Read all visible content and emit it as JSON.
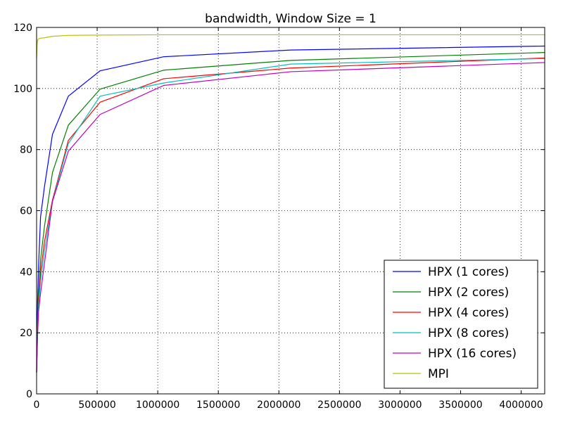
{
  "chart_data": {
    "type": "line",
    "title": "bandwidth, Window Size = 1",
    "xlabel": "",
    "ylabel": "",
    "xlim": [
      0,
      4194304
    ],
    "ylim": [
      0,
      120
    ],
    "grid": true,
    "legend_position": "lower-right",
    "x_ticks": [
      0,
      500000,
      1000000,
      1500000,
      2000000,
      2500000,
      3000000,
      3500000,
      4000000
    ],
    "x_tick_labels": [
      "0",
      "500000",
      "1000000",
      "1500000",
      "2000000",
      "2500000",
      "3000000",
      "3500000",
      "4000000"
    ],
    "y_ticks": [
      0,
      20,
      40,
      60,
      80,
      100,
      120
    ],
    "y_tick_labels": [
      "0",
      "20",
      "40",
      "60",
      "80",
      "100",
      "120"
    ],
    "series": [
      {
        "name": "HPX (1 cores)",
        "color": "#0000ff",
        "points": [
          [
            1,
            8
          ],
          [
            4096,
            20
          ],
          [
            8192,
            30
          ],
          [
            16384,
            42
          ],
          [
            32768,
            58
          ],
          [
            65536,
            68
          ],
          [
            131072,
            85
          ],
          [
            262144,
            97.5
          ],
          [
            524288,
            105.8
          ],
          [
            1048576,
            110.4
          ],
          [
            2097152,
            112.6
          ],
          [
            4194304,
            113.9
          ]
        ]
      },
      {
        "name": "HPX (2 cores)",
        "color": "#008000",
        "points": [
          [
            1,
            7
          ],
          [
            4096,
            16
          ],
          [
            8192,
            24
          ],
          [
            16384,
            32
          ],
          [
            32768,
            44
          ],
          [
            65536,
            55
          ],
          [
            131072,
            72.5
          ],
          [
            262144,
            88
          ],
          [
            524288,
            99.8
          ],
          [
            1048576,
            106
          ],
          [
            2097152,
            109.2
          ],
          [
            4194304,
            111.8
          ]
        ]
      },
      {
        "name": "HPX (4 cores)",
        "color": "#ff0000",
        "points": [
          [
            1,
            7
          ],
          [
            4096,
            14
          ],
          [
            8192,
            22
          ],
          [
            16384,
            30
          ],
          [
            32768,
            40
          ],
          [
            65536,
            50
          ],
          [
            131072,
            63.5
          ],
          [
            262144,
            83
          ],
          [
            524288,
            95.5
          ],
          [
            1048576,
            103.2
          ],
          [
            2097152,
            106.7
          ],
          [
            4194304,
            110
          ]
        ]
      },
      {
        "name": "HPX (8 cores)",
        "color": "#00bfbf",
        "points": [
          [
            1,
            7
          ],
          [
            4096,
            14
          ],
          [
            8192,
            21
          ],
          [
            16384,
            29
          ],
          [
            32768,
            37
          ],
          [
            65536,
            47
          ],
          [
            131072,
            63
          ],
          [
            262144,
            82
          ],
          [
            524288,
            97.5
          ],
          [
            1048576,
            101.8
          ],
          [
            2097152,
            108
          ],
          [
            4194304,
            109.8
          ]
        ]
      },
      {
        "name": "HPX (16 cores)",
        "color": "#bf00bf",
        "points": [
          [
            1,
            7
          ],
          [
            4096,
            13
          ],
          [
            8192,
            19
          ],
          [
            16384,
            27
          ],
          [
            32768,
            33
          ],
          [
            65536,
            43
          ],
          [
            131072,
            63
          ],
          [
            262144,
            79.5
          ],
          [
            524288,
            91.5
          ],
          [
            1048576,
            101
          ],
          [
            2097152,
            105.5
          ],
          [
            4194304,
            108.5
          ]
        ]
      },
      {
        "name": "MPI",
        "color": "#bfbf00",
        "points": [
          [
            1,
            110
          ],
          [
            4096,
            114.5
          ],
          [
            8192,
            115.8
          ],
          [
            16384,
            116.3
          ],
          [
            32768,
            116.5
          ],
          [
            65536,
            116.6
          ],
          [
            131072,
            117.1
          ],
          [
            262144,
            117.4
          ],
          [
            524288,
            117.5
          ],
          [
            1048576,
            117.6
          ],
          [
            2097152,
            117.6
          ],
          [
            4194304,
            117.6
          ]
        ]
      }
    ]
  }
}
